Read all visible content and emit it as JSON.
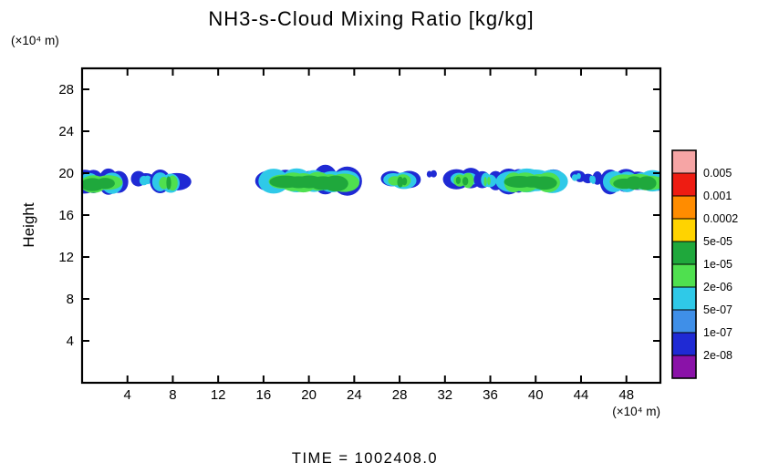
{
  "title": "NH3-s-Cloud Mixing Ratio [kg/kg]",
  "time_label": "TIME = 1002408.0",
  "axes": {
    "x": {
      "unit": "(×10⁴ m)",
      "range": [
        0,
        51
      ],
      "ticks": [
        4,
        8,
        12,
        16,
        20,
        24,
        28,
        32,
        36,
        40,
        44,
        48
      ]
    },
    "y": {
      "label": "Height",
      "unit": "(×10⁴ m)",
      "range": [
        0,
        30
      ],
      "ticks": [
        4,
        8,
        12,
        16,
        20,
        24,
        28
      ]
    }
  },
  "colorbar": {
    "labels": [
      "0.005",
      "0.001",
      "0.0002",
      "5e-05",
      "1e-05",
      "2e-06",
      "5e-07",
      "1e-07",
      "2e-08"
    ],
    "colors": [
      "#f6a5a5",
      "#ee1c12",
      "#ff8c00",
      "#ffd300",
      "#1fa83c",
      "#4fe04f",
      "#2fc9e8",
      "#3f8fe8",
      "#1f2ad4",
      "#8a12a8"
    ]
  },
  "chart_data": {
    "type": "filled_contour",
    "field": "NH3-s cloud mixing ratio",
    "units": "kg/kg",
    "x_unit": "1e4 m",
    "y_unit": "1e4 m",
    "x_range": [
      0,
      51
    ],
    "y_range": [
      0,
      30
    ],
    "contour_levels": [
      0.005,
      0.001,
      0.0002,
      5e-05,
      1e-05,
      2e-06,
      5e-07,
      1e-07,
      2e-08
    ],
    "background_value": 0,
    "cloud_band_height_range": [
      18.0,
      20.6
    ],
    "layer_colors": [
      {
        "level": "outer fringe 2e-08 to 1e-07",
        "color": "#1f2ad4"
      },
      {
        "level": "5e-07 to 2e-06",
        "color": "#2fc9e8"
      },
      {
        "level": "2e-06 to 1e-05",
        "color": "#4fe04f"
      },
      {
        "level": "core 1e-05 to 5e-05",
        "color": "#1fa83c"
      }
    ],
    "cloud_patches": [
      {
        "x_start": -0.3,
        "x_end": 3.6,
        "h_base": 18.1,
        "h_top": 20.3,
        "layers": 4,
        "peak": "~2e-05"
      },
      {
        "x_start": 4.9,
        "x_end": 6.1,
        "h_base": 18.8,
        "h_top": 20.1,
        "layers": 2,
        "peak": "~1e-06"
      },
      {
        "x_start": 6.4,
        "x_end": 8.7,
        "h_base": 18.1,
        "h_top": 20.3,
        "layers": 4,
        "peak": "~1e-05"
      },
      {
        "x_start": 16.3,
        "x_end": 24.1,
        "h_base": 18.1,
        "h_top": 20.5,
        "layers": 4,
        "peak": "~3e-05"
      },
      {
        "x_start": 26.9,
        "x_end": 29.3,
        "h_base": 18.5,
        "h_top": 20.4,
        "layers": 4,
        "peak": "~1e-05"
      },
      {
        "x_start": 30.4,
        "x_end": 31.0,
        "h_base": 19.5,
        "h_top": 20.2,
        "layers": 1,
        "peak": "~5e-08"
      },
      {
        "x_start": 32.3,
        "x_end": 34.7,
        "h_base": 18.5,
        "h_top": 20.4,
        "layers": 4,
        "peak": "~1e-05"
      },
      {
        "x_start": 35.1,
        "x_end": 36.6,
        "h_base": 18.5,
        "h_top": 20.2,
        "layers": 3,
        "peak": "~5e-06"
      },
      {
        "x_start": 36.9,
        "x_end": 42.3,
        "h_base": 18.1,
        "h_top": 20.5,
        "layers": 4,
        "peak": "~3e-05"
      },
      {
        "x_start": 43.3,
        "x_end": 44.3,
        "h_base": 19.2,
        "h_top": 20.2,
        "layers": 2,
        "peak": "~1e-06"
      },
      {
        "x_start": 44.6,
        "x_end": 45.5,
        "h_base": 18.9,
        "h_top": 20.1,
        "layers": 3,
        "peak": "~3e-06"
      },
      {
        "x_start": 46.3,
        "x_end": 51.3,
        "h_base": 18.2,
        "h_top": 20.3,
        "layers": 4,
        "peak": "~2e-05"
      }
    ]
  }
}
